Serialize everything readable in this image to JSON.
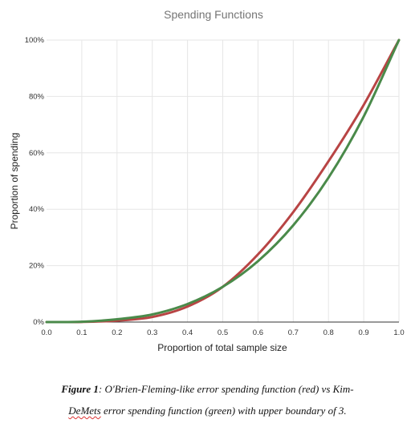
{
  "chart_data": {
    "type": "line",
    "title": "Spending Functions",
    "xlabel": "Proportion of total sample size",
    "ylabel": "Proportion of spending",
    "xlim": [
      0,
      1
    ],
    "ylim": [
      0,
      100
    ],
    "x_ticks": [
      "0.0",
      "0.1",
      "0.2",
      "0.3",
      "0.4",
      "0.5",
      "0.6",
      "0.7",
      "0.8",
      "0.9",
      "1.0"
    ],
    "y_ticks": [
      "0%",
      "20%",
      "40%",
      "60%",
      "80%",
      "100%"
    ],
    "grid": true,
    "legend": "none",
    "series": [
      {
        "color": "#b84444",
        "x": [
          0,
          0.1,
          0.2,
          0.3,
          0.4,
          0.5,
          0.6,
          0.7,
          0.8,
          0.9,
          1.0
        ],
        "y": [
          0,
          0.05,
          0.5,
          1.8,
          5.5,
          12.5,
          24,
          39,
          57,
          77,
          100
        ]
      },
      {
        "color": "#4a8a4a",
        "x": [
          0,
          0.1,
          0.2,
          0.3,
          0.4,
          0.5,
          0.6,
          0.7,
          0.8,
          0.9,
          1.0
        ],
        "y": [
          0,
          0.1,
          1,
          2.7,
          6.4,
          12.5,
          21.6,
          34.3,
          51.2,
          72.9,
          100
        ]
      }
    ]
  },
  "caption": {
    "figure_label": "Figure 1",
    "text_part1": ": O'Brien-Fleming-like error spending function (red) vs Kim-",
    "text_squiggle": "DeMets",
    "text_part2": " error spending function (green) with upper boundary of 3."
  }
}
